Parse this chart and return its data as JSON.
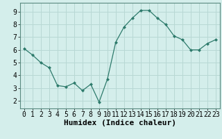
{
  "x": [
    0,
    1,
    2,
    3,
    4,
    5,
    6,
    7,
    8,
    9,
    10,
    11,
    12,
    13,
    14,
    15,
    16,
    17,
    18,
    19,
    20,
    21,
    22,
    23
  ],
  "y": [
    6.1,
    5.6,
    5.0,
    4.6,
    3.2,
    3.1,
    3.4,
    2.8,
    3.3,
    1.9,
    3.7,
    6.6,
    7.8,
    8.5,
    9.1,
    9.1,
    8.5,
    8.0,
    7.1,
    6.8,
    6.0,
    6.0,
    6.5,
    6.8
  ],
  "xlabel": "Humidex (Indice chaleur)",
  "xlim": [
    -0.5,
    23.5
  ],
  "ylim": [
    1.4,
    9.7
  ],
  "yticks": [
    2,
    3,
    4,
    5,
    6,
    7,
    8,
    9
  ],
  "xticks": [
    0,
    1,
    2,
    3,
    4,
    5,
    6,
    7,
    8,
    9,
    10,
    11,
    12,
    13,
    14,
    15,
    16,
    17,
    18,
    19,
    20,
    21,
    22,
    23
  ],
  "line_color": "#2d7a6b",
  "marker": "D",
  "marker_size": 2.5,
  "bg_color": "#d4eeeb",
  "grid_color": "#b8d8d4",
  "tick_label_fontsize": 7,
  "xlabel_fontsize": 8
}
